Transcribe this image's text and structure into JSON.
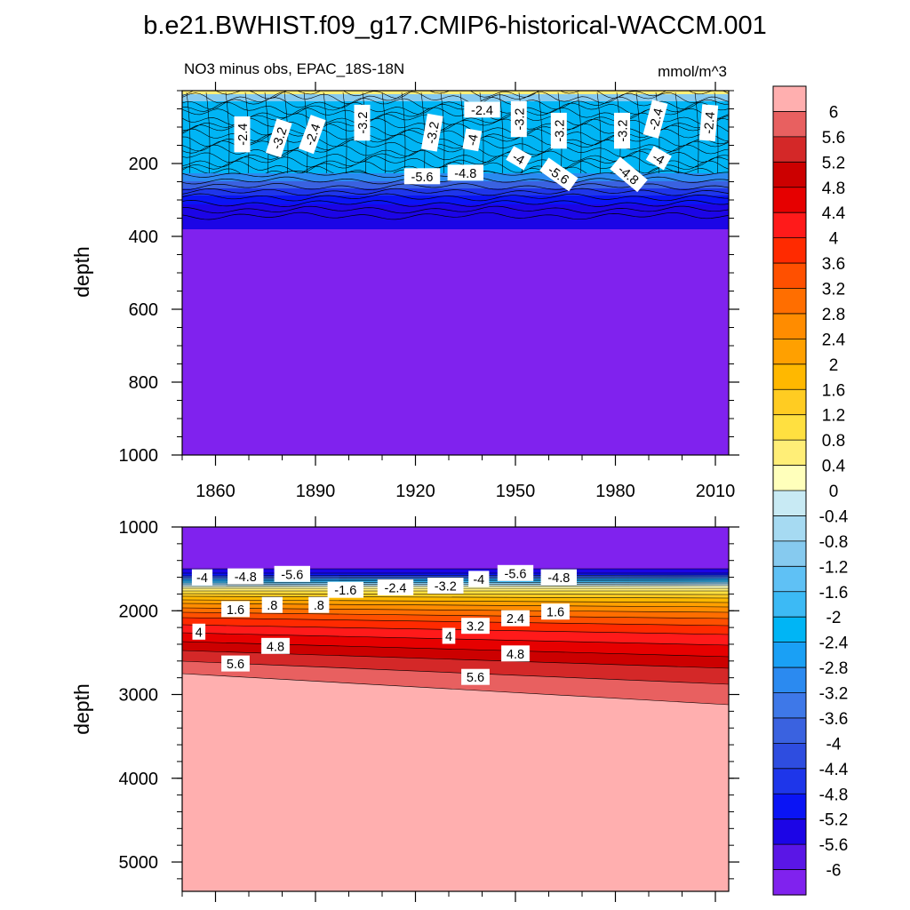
{
  "title": "b.e21.BWHIST.f09_g17.CMIP6-historical-WACCM.001",
  "subtitle_left": "NO3 minus obs, EPAC_18S-18N",
  "subtitle_right": "mmol/m^3",
  "chart_data": [
    {
      "type": "heatmap",
      "panel": "upper",
      "xlabel": "",
      "ylabel": "depth",
      "xlim": [
        1850,
        2014
      ],
      "ylim": [
        1000,
        0
      ],
      "x_ticks": [
        1860,
        1890,
        1920,
        1950,
        1980,
        2010
      ],
      "y_ticks": [
        200,
        400,
        600,
        800,
        1000
      ],
      "tick_labels": {
        "x": [
          "1860",
          "1890",
          "1920",
          "1950",
          "1980",
          "2010"
        ],
        "y": [
          "200",
          "400",
          "600",
          "800",
          "1000"
        ]
      },
      "contour_labels": [
        {
          "text": "-2.4",
          "x": 1868,
          "y": 120,
          "rot": -90
        },
        {
          "text": "-3.2",
          "x": 1879,
          "y": 130,
          "rot": -72
        },
        {
          "text": "-2.4",
          "x": 1889,
          "y": 120,
          "rot": -70
        },
        {
          "text": "-3.2",
          "x": 1904,
          "y": 88,
          "rot": -90
        },
        {
          "text": "-3.2",
          "x": 1925,
          "y": 115,
          "rot": -80
        },
        {
          "text": "-2.4",
          "x": 1940,
          "y": 52,
          "rot": 0
        },
        {
          "text": "-4",
          "x": 1937,
          "y": 135,
          "rot": -80
        },
        {
          "text": "-3.2",
          "x": 1951,
          "y": 78,
          "rot": -90
        },
        {
          "text": "-3.2",
          "x": 1963,
          "y": 110,
          "rot": -90
        },
        {
          "text": "-3.2",
          "x": 1982,
          "y": 110,
          "rot": -90
        },
        {
          "text": "-2.4",
          "x": 1992,
          "y": 78,
          "rot": -75
        },
        {
          "text": "-2.4",
          "x": 2008,
          "y": 88,
          "rot": -85
        },
        {
          "text": "-4",
          "x": 1951,
          "y": 185,
          "rot": 30
        },
        {
          "text": "-4",
          "x": 1993,
          "y": 185,
          "rot": 30
        },
        {
          "text": "-5.6",
          "x": 1922,
          "y": 235,
          "rot": 0
        },
        {
          "text": "-4.8",
          "x": 1935,
          "y": 225,
          "rot": 0
        },
        {
          "text": "-5.6",
          "x": 1963,
          "y": 230,
          "rot": 35
        },
        {
          "text": "-4.8",
          "x": 1984,
          "y": 230,
          "rot": 40
        }
      ]
    },
    {
      "type": "heatmap",
      "panel": "lower",
      "xlabel": "",
      "ylabel": "depth",
      "xlim": [
        1850,
        2014
      ],
      "ylim": [
        5350,
        1000
      ],
      "y_ticks": [
        1000,
        2000,
        3000,
        4000,
        5000
      ],
      "tick_labels": {
        "y": [
          "1000",
          "2000",
          "3000",
          "4000",
          "5000"
        ]
      },
      "contour_labels": [
        {
          "text": "-4",
          "x": 1856,
          "y": 1600,
          "rot": 0
        },
        {
          "text": "-4.8",
          "x": 1869,
          "y": 1590,
          "rot": 0
        },
        {
          "text": "-5.6",
          "x": 1883,
          "y": 1560,
          "rot": 0
        },
        {
          "text": "-1.6",
          "x": 1899,
          "y": 1750,
          "rot": 0
        },
        {
          "text": "-2.4",
          "x": 1914,
          "y": 1720,
          "rot": 0
        },
        {
          "text": "-3.2",
          "x": 1929,
          "y": 1700,
          "rot": 0
        },
        {
          "text": "-4",
          "x": 1939,
          "y": 1620,
          "rot": 0
        },
        {
          "text": "-5.6",
          "x": 1950,
          "y": 1550,
          "rot": 0
        },
        {
          "text": "-4.8",
          "x": 1963,
          "y": 1600,
          "rot": 0
        },
        {
          "text": "1.6",
          "x": 1866,
          "y": 1980,
          "rot": 0
        },
        {
          "text": ".8",
          "x": 1877,
          "y": 1930,
          "rot": 0
        },
        {
          "text": ".8",
          "x": 1891,
          "y": 1930,
          "rot": 0
        },
        {
          "text": "4",
          "x": 1855,
          "y": 2250,
          "rot": 0
        },
        {
          "text": "4.8",
          "x": 1878,
          "y": 2420,
          "rot": 0
        },
        {
          "text": "5.6",
          "x": 1866,
          "y": 2630,
          "rot": 0
        },
        {
          "text": "4",
          "x": 1930,
          "y": 2300,
          "rot": 0
        },
        {
          "text": "3.2",
          "x": 1938,
          "y": 2180,
          "rot": 0
        },
        {
          "text": "2.4",
          "x": 1950,
          "y": 2090,
          "rot": 0
        },
        {
          "text": "1.6",
          "x": 1962,
          "y": 2010,
          "rot": 0
        },
        {
          "text": "4.8",
          "x": 1950,
          "y": 2510,
          "rot": 0
        },
        {
          "text": "5.6",
          "x": 1938,
          "y": 2790,
          "rot": 0
        }
      ]
    }
  ],
  "colorbar": {
    "levels": [
      "6",
      "5.6",
      "5.2",
      "4.8",
      "4.4",
      "4",
      "3.6",
      "3.2",
      "2.8",
      "2.4",
      "2",
      "1.6",
      "1.2",
      "0.8",
      "0.4",
      "0",
      "-0.4",
      "-0.8",
      "-1.2",
      "-1.6",
      "-2",
      "-2.4",
      "-2.8",
      "-3.2",
      "-3.6",
      "-4",
      "-4.4",
      "-4.8",
      "-5.2",
      "-5.6",
      "-6"
    ],
    "colors": [
      "#ffafaf",
      "#e86060",
      "#d42828",
      "#cc0000",
      "#e60000",
      "#ff1a1a",
      "#ff2a00",
      "#ff5000",
      "#ff6e00",
      "#ff8c00",
      "#ffa000",
      "#ffb800",
      "#ffcc22",
      "#ffe040",
      "#ffee77",
      "#ffffbb",
      "#c8eaf4",
      "#a6daf2",
      "#86caef",
      "#5fc1f5",
      "#3cbaf5",
      "#00b5f5",
      "#1aa0f5",
      "#2b8af0",
      "#3e78e8",
      "#3a62e0",
      "#2e4de0",
      "#1e36ea",
      "#0a14f5",
      "#1c05e6",
      "#5a16e6",
      "#8022ee"
    ]
  }
}
